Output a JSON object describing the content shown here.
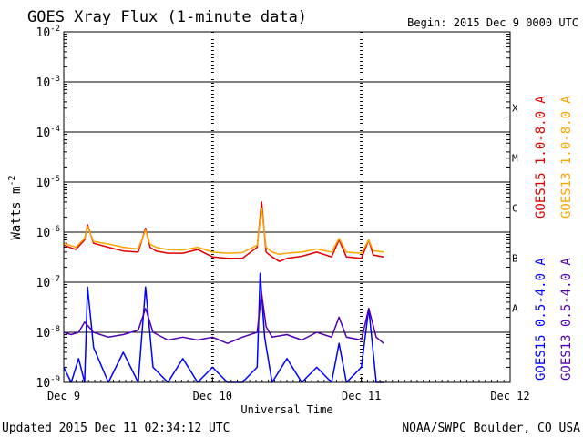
{
  "chart_data": {
    "type": "line",
    "title": "GOES Xray Flux (1-minute data)",
    "begin_label": "Begin:  2015 Dec 9 0000 UTC",
    "xlabel": "Universal Time",
    "ylabel": "Watts m",
    "ylabel_exponent": "-2",
    "y_scale": "log",
    "ylim": [
      1e-09,
      0.01
    ],
    "xlim": [
      0,
      3
    ],
    "x_unit": "days since 2015 Dec 9 0000 UTC",
    "x_ticks": [
      {
        "x": 0,
        "label": "Dec 9"
      },
      {
        "x": 1,
        "label": "Dec 10"
      },
      {
        "x": 2,
        "label": "Dec 11"
      },
      {
        "x": 3,
        "label": "Dec 12"
      }
    ],
    "y_ticks": [
      {
        "value": 0.01,
        "base": "10",
        "exp": "-2"
      },
      {
        "value": 0.001,
        "base": "10",
        "exp": "-3"
      },
      {
        "value": 0.0001,
        "base": "10",
        "exp": "-4"
      },
      {
        "value": 1e-05,
        "base": "10",
        "exp": "-5"
      },
      {
        "value": 1e-06,
        "base": "10",
        "exp": "-6"
      },
      {
        "value": 1e-07,
        "base": "10",
        "exp": "-7"
      },
      {
        "value": 1e-08,
        "base": "10",
        "exp": "-8"
      },
      {
        "value": 1e-09,
        "base": "10",
        "exp": "-9"
      }
    ],
    "flare_classes": [
      {
        "label": "X",
        "lower": 0.0001,
        "upper": 0.001
      },
      {
        "label": "M",
        "lower": 1e-05,
        "upper": 0.0001
      },
      {
        "label": "C",
        "lower": 1e-06,
        "upper": 1e-05
      },
      {
        "label": "B",
        "lower": 1e-07,
        "upper": 1e-06
      },
      {
        "label": "A",
        "lower": 1e-08,
        "upper": 1e-07
      }
    ],
    "grid": true,
    "legend_position": "right",
    "series": [
      {
        "name": "GOES15 1.0-8.0 A",
        "color": "#e00000",
        "x": [
          0,
          0.08,
          0.14,
          0.16,
          0.2,
          0.3,
          0.4,
          0.5,
          0.55,
          0.58,
          0.62,
          0.7,
          0.8,
          0.9,
          1.0,
          1.1,
          1.2,
          1.3,
          1.33,
          1.36,
          1.4,
          1.45,
          1.5,
          1.6,
          1.7,
          1.8,
          1.85,
          1.9,
          2.0,
          2.05,
          2.08,
          2.15
        ],
        "values": [
          5.5e-07,
          4.5e-07,
          7e-07,
          1.4e-06,
          6e-07,
          5e-07,
          4.2e-07,
          4e-07,
          1.2e-06,
          5e-07,
          4.2e-07,
          3.8e-07,
          3.8e-07,
          4.5e-07,
          3.2e-07,
          3e-07,
          3e-07,
          5e-07,
          4e-06,
          4e-07,
          3.2e-07,
          2.6e-07,
          3e-07,
          3.3e-07,
          4e-07,
          3.2e-07,
          7e-07,
          3.2e-07,
          3e-07,
          7e-07,
          3.5e-07,
          3.2e-07
        ]
      },
      {
        "name": "GOES13 1.0-8.0 A",
        "color": "#ffa500",
        "x": [
          0,
          0.08,
          0.14,
          0.16,
          0.2,
          0.3,
          0.4,
          0.5,
          0.55,
          0.58,
          0.62,
          0.7,
          0.8,
          0.9,
          1.0,
          1.1,
          1.2,
          1.3,
          1.33,
          1.36,
          1.4,
          1.45,
          1.5,
          1.6,
          1.7,
          1.8,
          1.85,
          1.9,
          2.0,
          2.05,
          2.08,
          2.15
        ],
        "values": [
          6e-07,
          5e-07,
          7.5e-07,
          1.3e-06,
          6.5e-07,
          5.8e-07,
          5e-07,
          4.6e-07,
          1.1e-06,
          5.8e-07,
          5e-07,
          4.5e-07,
          4.4e-07,
          5e-07,
          4e-07,
          3.8e-07,
          3.9e-07,
          5.5e-07,
          3e-06,
          5e-07,
          4e-07,
          3.6e-07,
          3.8e-07,
          4e-07,
          4.6e-07,
          4e-07,
          7.5e-07,
          4e-07,
          3.8e-07,
          7e-07,
          4.3e-07,
          4e-07
        ]
      },
      {
        "name": "GOES15 0.5-4.0 A",
        "color": "#0000ff",
        "x": [
          0,
          0.05,
          0.1,
          0.14,
          0.16,
          0.2,
          0.3,
          0.4,
          0.5,
          0.55,
          0.6,
          0.7,
          0.8,
          0.9,
          1.0,
          1.1,
          1.2,
          1.3,
          1.32,
          1.35,
          1.4,
          1.5,
          1.6,
          1.7,
          1.8,
          1.85,
          1.9,
          2.0,
          2.05,
          2.1,
          2.15
        ],
        "values": [
          2e-09,
          1e-09,
          3e-09,
          1e-09,
          8e-08,
          5e-09,
          1e-09,
          4e-09,
          1e-09,
          8e-08,
          2e-09,
          1e-09,
          3e-09,
          1e-09,
          2e-09,
          1e-09,
          1e-09,
          2e-09,
          1.5e-07,
          8e-09,
          1e-09,
          3e-09,
          1e-09,
          2e-09,
          1e-09,
          6e-09,
          1e-09,
          2e-09,
          3e-08,
          1e-09,
          1e-09
        ]
      },
      {
        "name": "GOES13 0.5-4.0 A",
        "color": "#5000b0",
        "x": [
          0,
          0.05,
          0.1,
          0.14,
          0.2,
          0.3,
          0.4,
          0.5,
          0.55,
          0.6,
          0.7,
          0.8,
          0.9,
          1.0,
          1.1,
          1.2,
          1.3,
          1.33,
          1.36,
          1.4,
          1.5,
          1.6,
          1.7,
          1.8,
          1.85,
          1.9,
          2.0,
          2.05,
          2.1,
          2.15
        ],
        "values": [
          1e-08,
          9e-09,
          1e-08,
          1.6e-08,
          1e-08,
          8e-09,
          9e-09,
          1.1e-08,
          3e-08,
          1e-08,
          7e-09,
          8e-09,
          7e-09,
          8e-09,
          6e-09,
          8e-09,
          1e-08,
          6e-08,
          1.3e-08,
          8e-09,
          9e-09,
          7e-09,
          1e-08,
          8e-09,
          2e-08,
          8e-09,
          7e-09,
          3e-08,
          8e-09,
          6e-09
        ]
      }
    ]
  },
  "footer": {
    "updated": "Updated 2015 Dec 11 02:34:12 UTC",
    "credit": "NOAA/SWPC Boulder, CO USA"
  }
}
